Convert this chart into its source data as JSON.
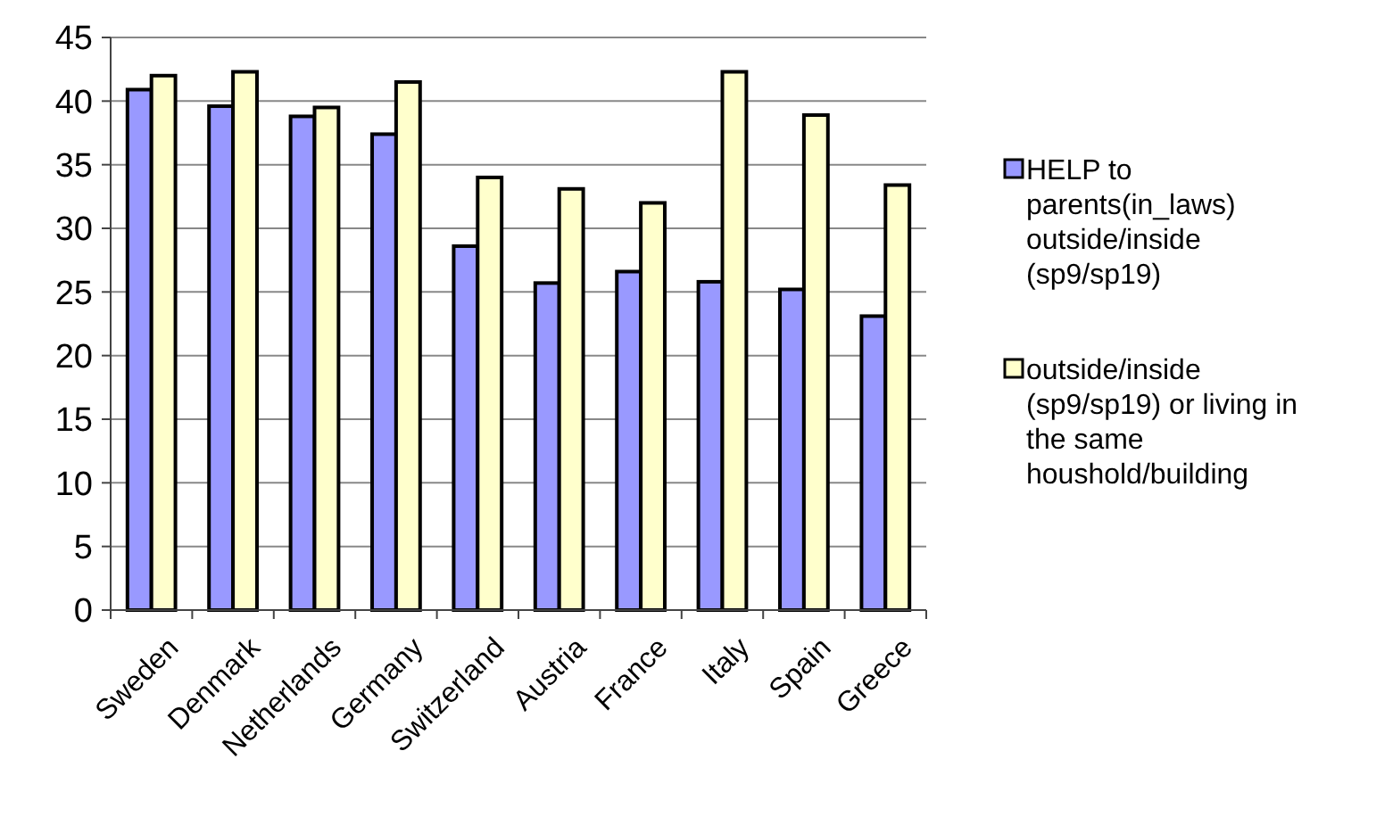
{
  "chart_data": {
    "type": "bar",
    "categories": [
      "Sweden",
      "Denmark",
      "Netherlands",
      "Germany",
      "Switzerland",
      "Austria",
      "France",
      "Italy",
      "Spain",
      "Greece"
    ],
    "series": [
      {
        "name": "HELP to parents(in_laws) outside/inside (sp9/sp19)",
        "color": "#9999ff",
        "values": [
          40.9,
          39.6,
          38.8,
          37.4,
          28.6,
          25.7,
          26.6,
          25.8,
          25.2,
          23.1
        ]
      },
      {
        "name": "outside/inside (sp9/sp19) or living in the same houshold/building",
        "color": "#ffffcc",
        "values": [
          42.0,
          42.3,
          39.5,
          41.5,
          34.0,
          33.1,
          32.0,
          42.3,
          38.9,
          33.4
        ]
      }
    ],
    "ylim": [
      0,
      45
    ],
    "yticks": [
      0,
      5,
      10,
      15,
      20,
      25,
      30,
      35,
      40,
      45
    ],
    "grid": "y",
    "legend": "right"
  }
}
